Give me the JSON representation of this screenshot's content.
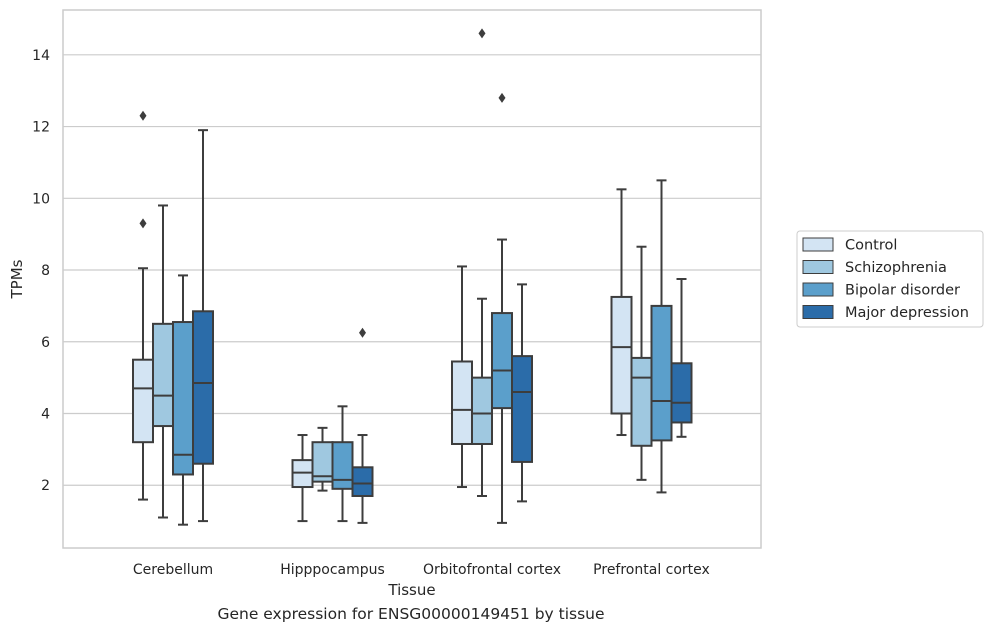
{
  "caption": "Gene expression for ENSG00000149451 by tissue",
  "chart_data": {
    "type": "box",
    "xlabel": "Tissue",
    "ylabel": "TPMs",
    "ylim": [
      0.25,
      15.25
    ],
    "yticks": [
      2,
      4,
      6,
      8,
      10,
      12,
      14
    ],
    "grid": "horizontal",
    "legend_position": "right",
    "categories": [
      "Cerebellum",
      "Hipppocampus",
      "Orbitofrontal cortex",
      "Prefrontal cortex"
    ],
    "series": [
      {
        "name": "Control",
        "color": "#d3e4f3",
        "boxes": [
          {
            "whisker_low": 1.6,
            "q1": 3.2,
            "median": 4.7,
            "q3": 5.5,
            "whisker_high": 8.05,
            "outliers": [
              9.3,
              12.3
            ]
          },
          {
            "whisker_low": 1.0,
            "q1": 1.95,
            "median": 2.35,
            "q3": 2.7,
            "whisker_high": 3.4,
            "outliers": []
          },
          {
            "whisker_low": 1.95,
            "q1": 3.15,
            "median": 4.1,
            "q3": 5.45,
            "whisker_high": 8.1,
            "outliers": []
          },
          {
            "whisker_low": 3.4,
            "q1": 4.0,
            "median": 5.85,
            "q3": 7.25,
            "whisker_high": 10.25,
            "outliers": []
          }
        ]
      },
      {
        "name": "Schizophrenia",
        "color": "#9fc8e0",
        "boxes": [
          {
            "whisker_low": 1.1,
            "q1": 3.65,
            "median": 4.5,
            "q3": 6.5,
            "whisker_high": 9.8,
            "outliers": []
          },
          {
            "whisker_low": 1.85,
            "q1": 2.1,
            "median": 2.25,
            "q3": 3.2,
            "whisker_high": 3.6,
            "outliers": []
          },
          {
            "whisker_low": 1.7,
            "q1": 3.15,
            "median": 4.0,
            "q3": 5.0,
            "whisker_high": 7.2,
            "outliers": [
              14.6
            ]
          },
          {
            "whisker_low": 2.15,
            "q1": 3.1,
            "median": 5.0,
            "q3": 5.55,
            "whisker_high": 8.65,
            "outliers": []
          }
        ]
      },
      {
        "name": "Bipolar disorder",
        "color": "#5b9fcb",
        "boxes": [
          {
            "whisker_low": 0.9,
            "q1": 2.3,
            "median": 2.85,
            "q3": 6.55,
            "whisker_high": 7.85,
            "outliers": []
          },
          {
            "whisker_low": 1.0,
            "q1": 1.9,
            "median": 2.15,
            "q3": 3.2,
            "whisker_high": 4.2,
            "outliers": []
          },
          {
            "whisker_low": 0.95,
            "q1": 4.15,
            "median": 5.2,
            "q3": 6.8,
            "whisker_high": 8.85,
            "outliers": [
              12.8
            ]
          },
          {
            "whisker_low": 1.8,
            "q1": 3.25,
            "median": 4.35,
            "q3": 7.0,
            "whisker_high": 10.5,
            "outliers": []
          }
        ]
      },
      {
        "name": "Major depression",
        "color": "#2b6ca9",
        "boxes": [
          {
            "whisker_low": 1.0,
            "q1": 2.6,
            "median": 4.85,
            "q3": 6.85,
            "whisker_high": 11.9,
            "outliers": []
          },
          {
            "whisker_low": 0.95,
            "q1": 1.7,
            "median": 2.05,
            "q3": 2.5,
            "whisker_high": 3.4,
            "outliers": [
              6.25
            ]
          },
          {
            "whisker_low": 1.55,
            "q1": 2.65,
            "median": 4.6,
            "q3": 5.6,
            "whisker_high": 7.6,
            "outliers": []
          },
          {
            "whisker_low": 3.35,
            "q1": 3.75,
            "median": 4.3,
            "q3": 5.4,
            "whisker_high": 7.75,
            "outliers": []
          }
        ]
      }
    ]
  }
}
